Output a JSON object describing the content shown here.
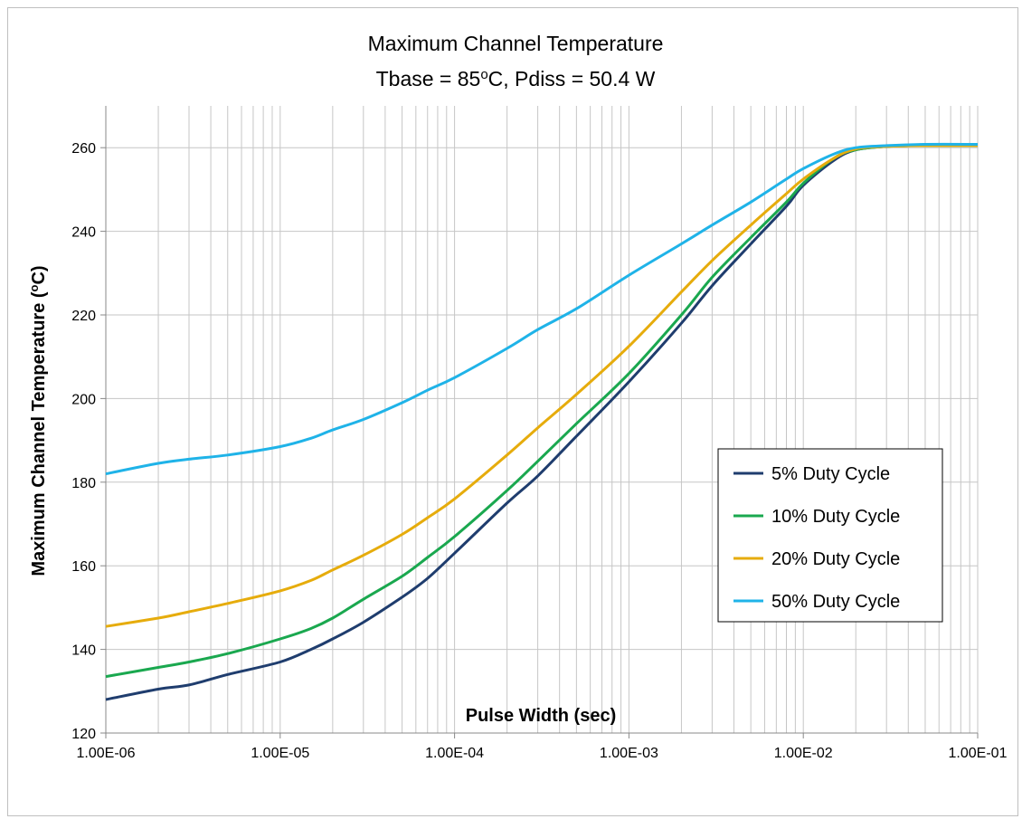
{
  "chart_data": {
    "type": "line",
    "title_line1": "Maximum Channel Temperature",
    "title_line2_prefix": "Tbase = 85",
    "title_line2_sup": "o",
    "title_line2_suffix": "C, Pdiss = 50.4 W",
    "xlabel": "Pulse Width (sec)",
    "ylabel_prefix": "Maximum Channel Temperature (",
    "ylabel_sup": "o",
    "ylabel_suffix": "C)",
    "x_scale": "log",
    "xlim": [
      1e-06,
      0.1
    ],
    "ylim": [
      120,
      270
    ],
    "x_tick_values": [
      1e-06,
      1e-05,
      0.0001,
      0.001,
      0.01,
      0.1
    ],
    "x_tick_labels": [
      "1.00E-06",
      "1.00E-05",
      "1.00E-04",
      "1.00E-03",
      "1.00E-02",
      "1.00E-01"
    ],
    "y_ticks": [
      120,
      140,
      160,
      180,
      200,
      220,
      240,
      260
    ],
    "grid": true,
    "legend_position": "right",
    "series": [
      {
        "name": "5% Duty Cycle",
        "color": "#1f3d6e",
        "x": [
          1e-06,
          2e-06,
          3e-06,
          5e-06,
          1e-05,
          1.5e-05,
          2e-05,
          3e-05,
          5e-05,
          7e-05,
          0.0001,
          0.0002,
          0.0003,
          0.0005,
          0.001,
          0.002,
          0.003,
          0.005,
          0.008,
          0.01,
          0.015,
          0.02,
          0.03,
          0.05,
          0.1
        ],
        "y": [
          128,
          130.5,
          131.5,
          134,
          137,
          140,
          142.5,
          146.5,
          152.5,
          157,
          163,
          175,
          181.5,
          191,
          204,
          218,
          227,
          237,
          246,
          251,
          257,
          259.5,
          260.3,
          260.5,
          260.5
        ]
      },
      {
        "name": "10% Duty Cycle",
        "color": "#1aa84f",
        "x": [
          1e-06,
          2e-06,
          3e-06,
          5e-06,
          1e-05,
          1.5e-05,
          2e-05,
          3e-05,
          5e-05,
          7e-05,
          0.0001,
          0.0002,
          0.0003,
          0.0005,
          0.001,
          0.002,
          0.003,
          0.005,
          0.008,
          0.01,
          0.015,
          0.02,
          0.03,
          0.05,
          0.1
        ],
        "y": [
          133.5,
          135.7,
          137,
          139,
          142.5,
          145,
          147.5,
          152,
          157.5,
          162,
          167,
          178,
          185,
          194,
          206,
          220,
          229,
          238.5,
          247,
          251.5,
          257.5,
          259.5,
          260.3,
          260.5,
          260.5
        ]
      },
      {
        "name": "20% Duty Cycle",
        "color": "#e6ac0c",
        "x": [
          1e-06,
          2e-06,
          3e-06,
          5e-06,
          1e-05,
          1.5e-05,
          2e-05,
          3e-05,
          5e-05,
          7e-05,
          0.0001,
          0.0002,
          0.0003,
          0.0005,
          0.001,
          0.002,
          0.003,
          0.005,
          0.008,
          0.01,
          0.015,
          0.02,
          0.03,
          0.05,
          0.1
        ],
        "y": [
          145.5,
          147.5,
          149,
          151,
          154,
          156.5,
          159,
          162.5,
          167.5,
          171.5,
          176,
          186.5,
          193,
          201,
          212.5,
          225.5,
          233,
          241.5,
          249,
          252.5,
          257.5,
          259.7,
          260.3,
          260.5,
          260.5
        ]
      },
      {
        "name": "50% Duty Cycle",
        "color": "#1fb3e8",
        "x": [
          1e-06,
          2e-06,
          3e-06,
          5e-06,
          1e-05,
          1.5e-05,
          2e-05,
          3e-05,
          5e-05,
          7e-05,
          0.0001,
          0.0002,
          0.0003,
          0.0005,
          0.001,
          0.002,
          0.003,
          0.005,
          0.008,
          0.01,
          0.015,
          0.02,
          0.03,
          0.05,
          0.1
        ],
        "y": [
          182,
          184.5,
          185.5,
          186.5,
          188.5,
          190.5,
          192.5,
          195,
          199,
          202,
          205,
          212,
          216.5,
          221.5,
          229.5,
          237,
          241.5,
          247,
          252.5,
          255,
          258.5,
          260,
          260.5,
          260.8,
          260.8
        ]
      }
    ]
  }
}
